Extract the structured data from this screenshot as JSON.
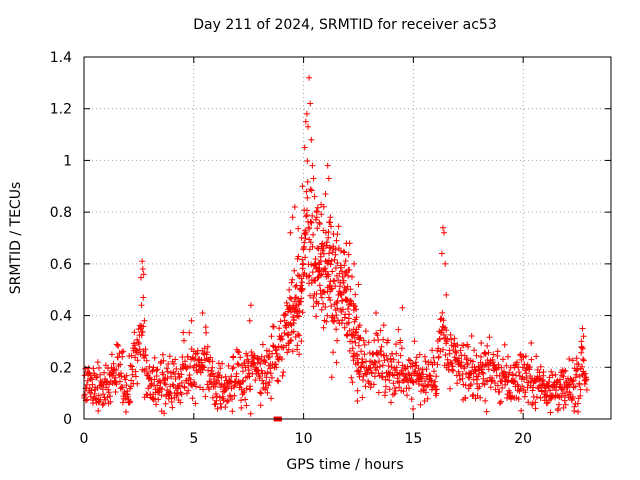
{
  "chart_data": {
    "type": "scatter",
    "title": "Day 211 of 2024, SRMTID for receiver ac53",
    "xlabel": "GPS time / hours",
    "ylabel": "SRMTID / TECUs",
    "xlim": [
      0,
      24
    ],
    "ylim": [
      0,
      1.4
    ],
    "xticks": [
      "0",
      "5",
      "10",
      "15",
      "20"
    ],
    "yticks": [
      "0",
      "0.2",
      "0.4",
      "0.6",
      "0.8",
      "1",
      "1.2",
      "1.4"
    ],
    "grid": true,
    "marker_color": "#ff0000",
    "series": [
      {
        "name": "SRMTID",
        "marker": "plus",
        "profile": {
          "x": [
            0,
            1,
            1.6,
            2,
            2.6,
            2.75,
            3,
            4,
            4.4,
            4.6,
            5,
            5.3,
            5.6,
            6,
            7,
            7.7,
            8,
            8.5,
            9,
            9.3,
            9.6,
            9.9,
            10.1,
            10.3,
            10.5,
            10.8,
            11.1,
            11.5,
            12,
            12.4,
            12.7,
            13,
            13.5,
            14,
            14.5,
            15,
            15.5,
            16,
            16.3,
            16.5,
            17,
            17.5,
            18,
            18.5,
            19,
            19.5,
            20,
            20.5,
            21,
            21.5,
            22,
            22.5,
            22.7,
            22.9
          ],
          "y": [
            0.12,
            0.12,
            0.2,
            0.1,
            0.35,
            0.2,
            0.15,
            0.12,
            0.15,
            0.22,
            0.2,
            0.25,
            0.22,
            0.12,
            0.14,
            0.2,
            0.16,
            0.2,
            0.3,
            0.4,
            0.45,
            0.55,
            0.75,
            0.7,
            0.6,
            0.6,
            0.55,
            0.5,
            0.45,
            0.3,
            0.2,
            0.2,
            0.25,
            0.2,
            0.2,
            0.17,
            0.15,
            0.17,
            0.35,
            0.25,
            0.2,
            0.18,
            0.18,
            0.2,
            0.16,
            0.14,
            0.18,
            0.15,
            0.13,
            0.12,
            0.1,
            0.15,
            0.22,
            0.15
          ],
          "spread": 0.055
        },
        "peaks": [
          {
            "x": 2.65,
            "y": 0.61
          },
          {
            "x": 2.68,
            "y": 0.58
          },
          {
            "x": 2.72,
            "y": 0.56
          },
          {
            "x": 2.7,
            "y": 0.47
          },
          {
            "x": 2.62,
            "y": 0.44
          },
          {
            "x": 2.75,
            "y": 0.38
          },
          {
            "x": 4.9,
            "y": 0.38
          },
          {
            "x": 5.4,
            "y": 0.41
          },
          {
            "x": 7.6,
            "y": 0.44
          },
          {
            "x": 7.55,
            "y": 0.38
          },
          {
            "x": 9.4,
            "y": 0.72
          },
          {
            "x": 9.5,
            "y": 0.78
          },
          {
            "x": 9.6,
            "y": 0.82
          },
          {
            "x": 9.95,
            "y": 0.9
          },
          {
            "x": 10.05,
            "y": 1.05
          },
          {
            "x": 10.1,
            "y": 1.15
          },
          {
            "x": 10.15,
            "y": 1.18
          },
          {
            "x": 10.2,
            "y": 1.13
          },
          {
            "x": 10.25,
            "y": 1.32
          },
          {
            "x": 10.3,
            "y": 1.22
          },
          {
            "x": 10.35,
            "y": 1.08
          },
          {
            "x": 10.4,
            "y": 0.98
          },
          {
            "x": 10.45,
            "y": 0.93
          },
          {
            "x": 10.5,
            "y": 0.86
          },
          {
            "x": 10.6,
            "y": 0.78
          },
          {
            "x": 11.0,
            "y": 0.87
          },
          {
            "x": 11.1,
            "y": 0.98
          },
          {
            "x": 11.15,
            "y": 0.93
          },
          {
            "x": 11.2,
            "y": 0.76
          },
          {
            "x": 11.5,
            "y": 0.69
          },
          {
            "x": 11.7,
            "y": 0.65
          },
          {
            "x": 12.1,
            "y": 0.68
          },
          {
            "x": 12.3,
            "y": 0.6
          },
          {
            "x": 12.5,
            "y": 0.52
          },
          {
            "x": 14.5,
            "y": 0.43
          },
          {
            "x": 13.3,
            "y": 0.41
          },
          {
            "x": 16.35,
            "y": 0.74
          },
          {
            "x": 16.4,
            "y": 0.72
          },
          {
            "x": 16.3,
            "y": 0.64
          },
          {
            "x": 16.45,
            "y": 0.6
          },
          {
            "x": 16.5,
            "y": 0.48
          },
          {
            "x": 22.7,
            "y": 0.35
          },
          {
            "x": 22.75,
            "y": 0.32
          },
          {
            "x": 22.65,
            "y": 0.3
          }
        ]
      }
    ],
    "zero_markers_x": [
      8.75,
      8.9
    ]
  }
}
